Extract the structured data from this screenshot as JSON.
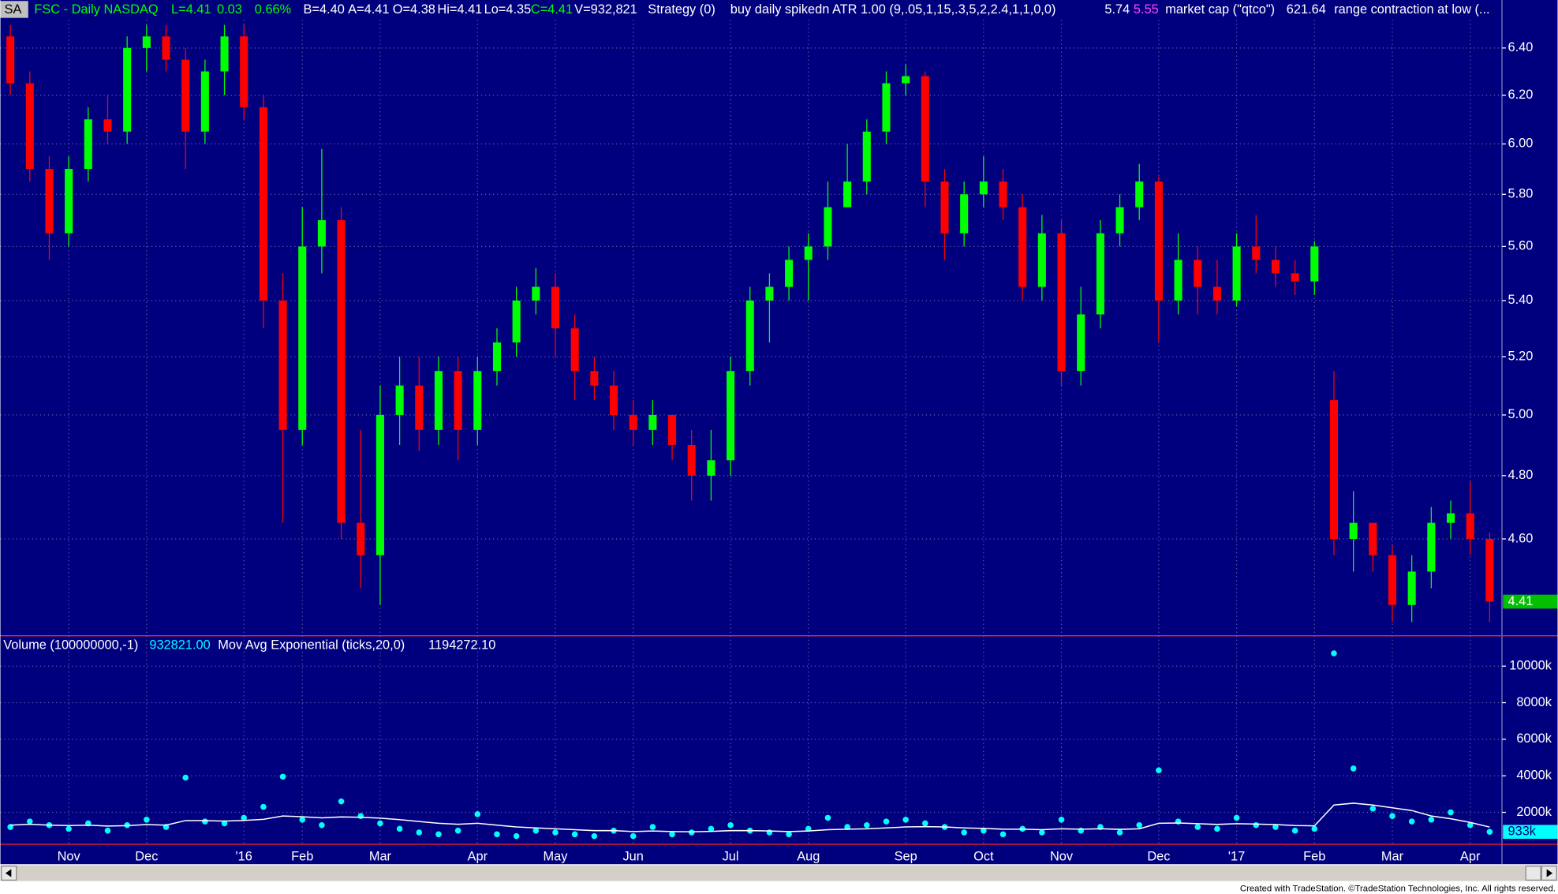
{
  "header": {
    "items": [
      "SA",
      "FSC - Daily  NASDAQ",
      "L=4.41",
      "0.03",
      "0.66%",
      "B=4.40",
      "A=4.41",
      "O=4.38",
      "Hi=4.41",
      "Lo=4.35",
      "C=4.41",
      "V=932,821",
      "Strategy (0)",
      "buy daily spikedn ATR 1.00 (9,.05,1,15,.3,5,2,2.4,1,1,0,0)",
      "5.74",
      "5.55",
      "market cap (\"qtco\")",
      "621.64",
      "range contraction at low (..."
    ]
  },
  "volume_header": {
    "items": [
      "Volume (100000000,-1)",
      "932821.00",
      "Mov Avg Exponential (ticks,20,0)",
      "1194272.10"
    ]
  },
  "footer": "Created with TradeStation. ©TradeStation Technologies, Inc. All rights reserved.",
  "chart_data": [
    {
      "type": "candlestick",
      "log": true,
      "grid": true,
      "up_color": "#00ff00",
      "down_color": "#ff0000",
      "categories": [
        null,
        null,
        null,
        "Nov",
        null,
        null,
        null,
        "Dec",
        null,
        null,
        null,
        null,
        "'16",
        null,
        null,
        "Feb",
        null,
        null,
        null,
        "Mar",
        null,
        null,
        null,
        null,
        "Apr",
        null,
        null,
        null,
        "May",
        null,
        null,
        null,
        "Jun",
        null,
        null,
        null,
        null,
        "Jul",
        null,
        null,
        null,
        "Aug",
        null,
        null,
        null,
        null,
        "Sep",
        null,
        null,
        null,
        "Oct",
        null,
        null,
        null,
        "Nov",
        null,
        null,
        null,
        null,
        "Dec",
        null,
        null,
        null,
        "'17",
        null,
        null,
        null,
        "Feb",
        null,
        null,
        null,
        "Mar",
        null,
        null,
        null,
        "Apr",
        null
      ],
      "open": [
        6.45,
        6.25,
        5.9,
        5.65,
        5.9,
        6.1,
        6.05,
        6.4,
        6.45,
        6.35,
        6.05,
        6.3,
        6.45,
        6.15,
        5.4,
        4.95,
        5.6,
        5.7,
        4.65,
        4.55,
        5.0,
        5.1,
        4.95,
        5.15,
        4.95,
        5.15,
        5.25,
        5.4,
        5.45,
        5.3,
        5.15,
        5.1,
        5.0,
        4.95,
        5.0,
        4.9,
        4.8,
        4.85,
        5.15,
        5.4,
        5.45,
        5.55,
        5.6,
        5.75,
        5.85,
        6.05,
        6.25,
        6.28,
        5.85,
        5.65,
        5.8,
        5.85,
        5.75,
        5.45,
        5.65,
        5.15,
        5.35,
        5.65,
        5.75,
        5.85,
        5.4,
        5.55,
        5.45,
        5.4,
        5.6,
        5.55,
        5.5,
        5.47,
        5.05,
        4.6,
        4.65,
        4.55,
        4.4,
        4.5,
        4.65,
        4.68,
        4.6
      ],
      "high": [
        6.5,
        6.3,
        5.95,
        5.95,
        6.15,
        6.2,
        6.45,
        6.5,
        6.5,
        6.4,
        6.35,
        6.5,
        6.5,
        6.2,
        5.5,
        5.75,
        5.98,
        5.75,
        4.95,
        5.1,
        5.2,
        5.2,
        5.2,
        5.2,
        5.2,
        5.3,
        5.45,
        5.52,
        5.5,
        5.35,
        5.2,
        5.15,
        5.05,
        5.05,
        5.0,
        4.95,
        4.95,
        5.2,
        5.45,
        5.5,
        5.6,
        5.65,
        5.85,
        6.0,
        6.1,
        6.3,
        6.33,
        6.3,
        5.9,
        5.85,
        5.95,
        5.9,
        5.8,
        5.72,
        5.7,
        5.45,
        5.7,
        5.8,
        5.92,
        5.87,
        5.65,
        5.6,
        5.55,
        5.65,
        5.72,
        5.6,
        5.55,
        5.62,
        5.15,
        4.75,
        4.65,
        4.58,
        4.55,
        4.7,
        4.72,
        4.78,
        4.62
      ],
      "low": [
        6.2,
        5.85,
        5.55,
        5.6,
        5.85,
        6.0,
        6.0,
        6.3,
        6.3,
        5.9,
        6.0,
        6.2,
        6.1,
        5.3,
        4.65,
        4.9,
        5.5,
        4.6,
        4.45,
        4.4,
        4.9,
        4.88,
        4.9,
        4.85,
        4.9,
        5.1,
        5.2,
        5.35,
        5.2,
        5.05,
        5.05,
        4.95,
        4.9,
        4.9,
        4.85,
        4.72,
        4.72,
        4.8,
        5.1,
        5.25,
        5.4,
        5.4,
        5.55,
        5.75,
        5.8,
        6.0,
        6.2,
        5.75,
        5.55,
        5.6,
        5.75,
        5.7,
        5.4,
        5.4,
        5.1,
        5.1,
        5.3,
        5.6,
        5.7,
        5.25,
        5.35,
        5.35,
        5.35,
        5.38,
        5.5,
        5.45,
        5.42,
        5.42,
        4.55,
        4.5,
        4.5,
        4.35,
        4.35,
        4.45,
        4.6,
        4.55,
        4.35
      ],
      "close": [
        6.25,
        5.9,
        5.65,
        5.9,
        6.1,
        6.05,
        6.4,
        6.45,
        6.35,
        6.05,
        6.3,
        6.45,
        6.15,
        5.4,
        4.95,
        5.6,
        5.7,
        4.65,
        4.55,
        5.0,
        5.1,
        4.95,
        5.15,
        4.95,
        5.15,
        5.25,
        5.4,
        5.45,
        5.3,
        5.15,
        5.1,
        5.0,
        4.95,
        5.0,
        4.9,
        4.8,
        4.85,
        5.15,
        5.4,
        5.45,
        5.55,
        5.6,
        5.75,
        5.85,
        6.05,
        6.25,
        6.28,
        5.85,
        5.65,
        5.8,
        5.85,
        5.75,
        5.45,
        5.65,
        5.15,
        5.35,
        5.65,
        5.75,
        5.85,
        5.4,
        5.55,
        5.45,
        5.4,
        5.6,
        5.55,
        5.5,
        5.47,
        5.6,
        4.6,
        4.65,
        4.55,
        4.4,
        4.5,
        4.65,
        4.68,
        4.6,
        4.41
      ],
      "ylim": [
        4.31,
        6.61
      ],
      "yticks": [
        {
          "value": 4.6,
          "label": "4.60"
        },
        {
          "value": 4.8,
          "label": "4.80"
        },
        {
          "value": 5.0,
          "label": "5.00"
        },
        {
          "value": 5.2,
          "label": "5.20"
        },
        {
          "value": 5.4,
          "label": "5.40"
        },
        {
          "value": 5.6,
          "label": "5.60"
        },
        {
          "value": 5.8,
          "label": "5.80"
        },
        {
          "value": 6.0,
          "label": "6.00"
        },
        {
          "value": 6.2,
          "label": "6.20"
        },
        {
          "value": 6.4,
          "label": "6.40"
        }
      ]
    },
    {
      "type": "scatter",
      "grid": true,
      "series": [
        {
          "name": "Volume",
          "color": "#00ffff",
          "values": [
            1200000,
            1500000,
            1300000,
            1100000,
            1400000,
            1000000,
            1300000,
            1600000,
            1200000,
            3900000,
            1500000,
            1400000,
            1700000,
            2300000,
            3950000,
            1600000,
            1300000,
            2600000,
            1800000,
            1400000,
            1100000,
            900000,
            800000,
            1000000,
            1900000,
            800000,
            700000,
            1000000,
            900000,
            800000,
            700000,
            1000000,
            700000,
            1200000,
            800000,
            900000,
            1100000,
            1300000,
            1000000,
            900000,
            800000,
            1100000,
            1700000,
            1200000,
            1300000,
            1500000,
            1600000,
            1400000,
            1200000,
            900000,
            1000000,
            800000,
            1100000,
            900000,
            1600000,
            1000000,
            1200000,
            900000,
            1300000,
            4300000,
            1500000,
            1200000,
            1100000,
            1700000,
            1300000,
            1200000,
            1000000,
            1100000,
            10700000,
            4400000,
            2200000,
            1800000,
            1500000,
            1600000,
            2000000,
            1300000,
            932821
          ],
          "last_value_label": "933k"
        },
        {
          "name": "Mov Avg Exponential",
          "color": "#ffffff",
          "values": [
            1300000,
            1350000,
            1300000,
            1280000,
            1300000,
            1250000,
            1270000,
            1330000,
            1300000,
            1550000,
            1550000,
            1520000,
            1560000,
            1620000,
            1800000,
            1760000,
            1700000,
            1750000,
            1730000,
            1680000,
            1600000,
            1500000,
            1400000,
            1350000,
            1400000,
            1300000,
            1200000,
            1150000,
            1100000,
            1050000,
            1000000,
            1000000,
            950000,
            980000,
            950000,
            940000,
            960000,
            1000000,
            1000000,
            980000,
            950000,
            980000,
            1050000,
            1080000,
            1100000,
            1150000,
            1200000,
            1220000,
            1200000,
            1150000,
            1120000,
            1080000,
            1080000,
            1050000,
            1100000,
            1080000,
            1100000,
            1070000,
            1100000,
            1400000,
            1420000,
            1380000,
            1340000,
            1380000,
            1360000,
            1330000,
            1280000,
            1260000,
            2400000,
            2500000,
            2400000,
            2250000,
            2100000,
            1800000,
            1650000,
            1450000,
            1194272.1
          ]
        }
      ],
      "ylim": [
        250000,
        11500000
      ],
      "yticks": [
        {
          "value": 2000000,
          "label": "2000k"
        },
        {
          "value": 4000000,
          "label": "4000k"
        },
        {
          "value": 6000000,
          "label": "6000k"
        },
        {
          "value": 8000000,
          "label": "8000k"
        },
        {
          "value": 10000000,
          "label": "10000k"
        }
      ]
    }
  ]
}
